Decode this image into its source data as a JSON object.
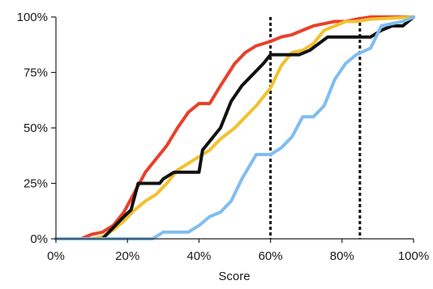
{
  "chart_data": {
    "type": "line",
    "title": "",
    "xlabel": "Score",
    "ylabel": "",
    "xlim": [
      0,
      100
    ],
    "ylim": [
      0,
      100
    ],
    "x_ticks": [
      "0%",
      "20%",
      "40%",
      "60%",
      "80%",
      "100%"
    ],
    "y_ticks": [
      "0%",
      "25%",
      "50%",
      "75%",
      "100%"
    ],
    "grid": false,
    "legend": "none",
    "reference_lines_x": [
      60,
      85
    ],
    "series": [
      {
        "color": "#e8402a",
        "points": [
          [
            0,
            0
          ],
          [
            7,
            0
          ],
          [
            10,
            2
          ],
          [
            13,
            3
          ],
          [
            16,
            6
          ],
          [
            19,
            12
          ],
          [
            22,
            21
          ],
          [
            25,
            30
          ],
          [
            28,
            36
          ],
          [
            31,
            42
          ],
          [
            34,
            50
          ],
          [
            37,
            57
          ],
          [
            40,
            61
          ],
          [
            43,
            61
          ],
          [
            46,
            69
          ],
          [
            50,
            79
          ],
          [
            53,
            84
          ],
          [
            56,
            87
          ],
          [
            60,
            89
          ],
          [
            63,
            91
          ],
          [
            66,
            92
          ],
          [
            69,
            94
          ],
          [
            72,
            96
          ],
          [
            75,
            97
          ],
          [
            78,
            98
          ],
          [
            81,
            98
          ],
          [
            84,
            99
          ],
          [
            88,
            100
          ],
          [
            100,
            100
          ]
        ]
      },
      {
        "color": "#f2c12e",
        "points": [
          [
            0,
            0
          ],
          [
            10,
            0
          ],
          [
            13,
            1
          ],
          [
            16,
            4
          ],
          [
            19,
            8
          ],
          [
            22,
            13
          ],
          [
            25,
            17
          ],
          [
            28,
            20
          ],
          [
            31,
            25
          ],
          [
            34,
            31
          ],
          [
            37,
            34
          ],
          [
            40,
            37
          ],
          [
            43,
            40
          ],
          [
            46,
            45
          ],
          [
            50,
            50
          ],
          [
            53,
            55
          ],
          [
            56,
            60
          ],
          [
            60,
            68
          ],
          [
            63,
            78
          ],
          [
            66,
            84
          ],
          [
            69,
            85
          ],
          [
            72,
            88
          ],
          [
            75,
            94
          ],
          [
            78,
            96
          ],
          [
            81,
            98
          ],
          [
            84,
            98
          ],
          [
            88,
            99
          ],
          [
            100,
            100
          ]
        ]
      },
      {
        "color": "#111111",
        "points": [
          [
            0,
            0
          ],
          [
            13,
            0
          ],
          [
            16,
            5
          ],
          [
            19,
            10
          ],
          [
            21,
            13
          ],
          [
            23,
            25
          ],
          [
            29,
            25
          ],
          [
            30,
            27
          ],
          [
            33,
            30
          ],
          [
            36,
            30
          ],
          [
            40,
            30
          ],
          [
            41,
            40
          ],
          [
            44,
            46
          ],
          [
            46,
            50
          ],
          [
            49,
            62
          ],
          [
            52,
            69
          ],
          [
            55,
            74
          ],
          [
            58,
            79
          ],
          [
            60,
            83
          ],
          [
            68,
            83
          ],
          [
            71,
            85
          ],
          [
            76,
            91
          ],
          [
            88,
            91
          ],
          [
            91,
            94
          ],
          [
            94,
            96
          ],
          [
            97,
            96
          ],
          [
            100,
            100
          ]
        ]
      },
      {
        "color": "#80bdf0",
        "points": [
          [
            0,
            0
          ],
          [
            27,
            0
          ],
          [
            30,
            3
          ],
          [
            37,
            3
          ],
          [
            40,
            6
          ],
          [
            43,
            10
          ],
          [
            46,
            12
          ],
          [
            49,
            17
          ],
          [
            52,
            27
          ],
          [
            56,
            38
          ],
          [
            60,
            38
          ],
          [
            63,
            41
          ],
          [
            66,
            46
          ],
          [
            69,
            55
          ],
          [
            72,
            55
          ],
          [
            75,
            60
          ],
          [
            78,
            72
          ],
          [
            81,
            79
          ],
          [
            84,
            83
          ],
          [
            88,
            86
          ],
          [
            91,
            96
          ],
          [
            94,
            97
          ],
          [
            97,
            98
          ],
          [
            100,
            100
          ]
        ]
      }
    ]
  }
}
